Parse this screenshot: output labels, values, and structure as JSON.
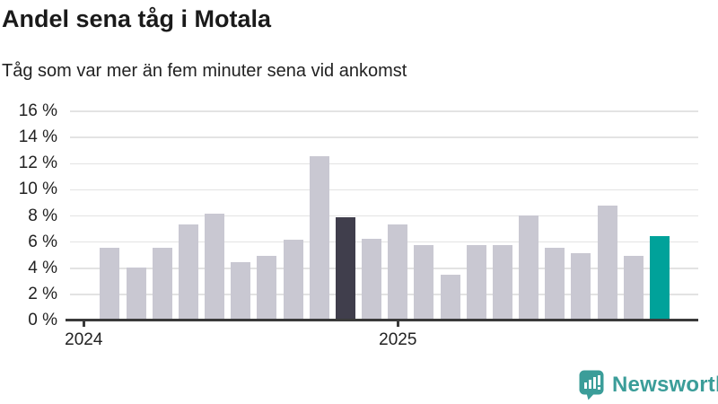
{
  "header": {
    "title": "Andel sena tåg i Motala",
    "subtitle": "Tåg som var mer än fem minuter sena vid ankomst"
  },
  "chart_data": {
    "type": "bar",
    "title": "Andel sena tåg i Motala",
    "subtitle": "Tåg som var mer än fem minuter sena vid ankomst",
    "unit": "%",
    "ylim": [
      0,
      16
    ],
    "y_tick_step": 2,
    "y_tick_labels": [
      "0 %",
      "2 %",
      "4 %",
      "6 %",
      "8 %",
      "10 %",
      "12 %",
      "14 %",
      "16 %"
    ],
    "x_ticks": [
      {
        "label": "2024",
        "slot": 0
      },
      {
        "label": "2025",
        "slot": 12
      }
    ],
    "slots_per_year": 12,
    "first_bar_slot": 1,
    "values": [
      5.5,
      4.0,
      5.5,
      7.3,
      8.1,
      4.4,
      4.9,
      6.1,
      12.5,
      7.8,
      6.2,
      7.3,
      5.7,
      3.4,
      5.7,
      5.7,
      8.0,
      5.5,
      5.1,
      8.7,
      4.9,
      6.4
    ],
    "highlight_indexes": {
      "dark": 9,
      "teal": 21
    },
    "grid": true,
    "legend_shown": false,
    "colors": {
      "bar_default": "#c9c8d2",
      "bar_dark": "#403e4c",
      "bar_teal": "#00a29a",
      "gridline": "#e3e3e3",
      "axis": "#3a3a3a",
      "text": "#222222"
    }
  },
  "branding": {
    "logo_text": "Newsworthy",
    "logo_color": "#3b9d99",
    "logo_icon": "bar-chart-speech-bubble-icon"
  }
}
